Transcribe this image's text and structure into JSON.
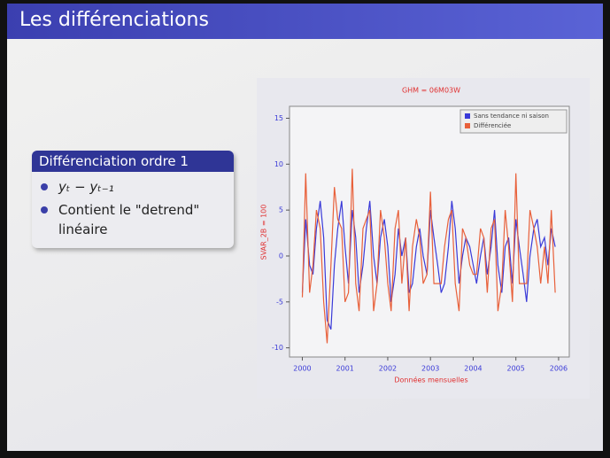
{
  "slide": {
    "title": "Les différenciations",
    "block": {
      "title": "Différenciation ordre 1",
      "items": [
        "yₜ − yₜ₋₁",
        "Contient le \"detrend\" linéaire"
      ]
    }
  },
  "chart_data": {
    "type": "line",
    "title": "GHM = 06M03W",
    "x_label": "Données mensuelles",
    "y_label": "SVAR_2B = 100",
    "x": [
      2000.0,
      2000.08,
      2000.17,
      2000.25,
      2000.33,
      2000.42,
      2000.5,
      2000.58,
      2000.67,
      2000.75,
      2000.83,
      2000.92,
      2001.0,
      2001.08,
      2001.17,
      2001.25,
      2001.33,
      2001.42,
      2001.5,
      2001.58,
      2001.67,
      2001.75,
      2001.83,
      2001.92,
      2002.0,
      2002.08,
      2002.17,
      2002.25,
      2002.33,
      2002.42,
      2002.5,
      2002.58,
      2002.67,
      2002.75,
      2002.83,
      2002.92,
      2003.0,
      2003.08,
      2003.17,
      2003.25,
      2003.33,
      2003.42,
      2003.5,
      2003.58,
      2003.67,
      2003.75,
      2003.83,
      2003.92,
      2004.0,
      2004.08,
      2004.17,
      2004.25,
      2004.33,
      2004.42,
      2004.5,
      2004.58,
      2004.67,
      2004.75,
      2004.83,
      2004.92,
      2005.0,
      2005.08,
      2005.17,
      2005.25,
      2005.33,
      2005.42,
      2005.5,
      2005.58,
      2005.67,
      2005.75,
      2005.83,
      2005.92
    ],
    "series": [
      {
        "name": "Sans tendance ni saison",
        "color": "#3a3ad8",
        "values": [
          -4,
          4,
          -1,
          -2,
          3,
          6,
          2,
          -7,
          -8,
          -1,
          3,
          6,
          1,
          -3,
          5,
          2,
          -4,
          -1,
          3,
          6,
          0,
          -3,
          2,
          4,
          1,
          -5,
          -2,
          3,
          0,
          2,
          -4,
          -3,
          1,
          3,
          0,
          -2,
          5,
          2,
          -1,
          -4,
          -3,
          1,
          6,
          3,
          -3,
          0,
          2,
          1,
          -1,
          -3,
          0,
          2,
          -2,
          1,
          5,
          -1,
          -4,
          1,
          2,
          -3,
          4,
          1,
          -2,
          -5,
          0,
          3,
          4,
          1,
          2,
          -1,
          3,
          1
        ]
      },
      {
        "name": "Différenciée",
        "color": "#e8603a",
        "values": [
          -4.5,
          9,
          -4,
          -1,
          5,
          3,
          -5,
          -9.5,
          -1,
          7.5,
          4,
          3,
          -5,
          -4,
          9.5,
          -3,
          -6,
          3,
          4,
          5,
          -6,
          -3,
          5,
          2,
          -3,
          -6,
          3,
          5,
          -3,
          2,
          -6,
          1,
          4,
          2,
          -3,
          -2,
          7,
          -3,
          -3,
          -3,
          1,
          4,
          5,
          -3,
          -6,
          3,
          2,
          -1,
          -2,
          -2,
          3,
          2,
          -4,
          3,
          4,
          -6,
          -3,
          5,
          1,
          -5,
          9,
          -3,
          -3,
          -3,
          5,
          3,
          1,
          -3,
          1,
          -3,
          5,
          -4
        ]
      }
    ],
    "xlim": [
      1999.7,
      2006.25
    ],
    "xticks": [
      2000,
      2001,
      2002,
      2003,
      2004,
      2005,
      2006
    ],
    "ylim": [
      -11,
      16.3
    ],
    "yticks": [
      -10,
      -5,
      0,
      5,
      10,
      15
    ],
    "legend": "top-right"
  }
}
